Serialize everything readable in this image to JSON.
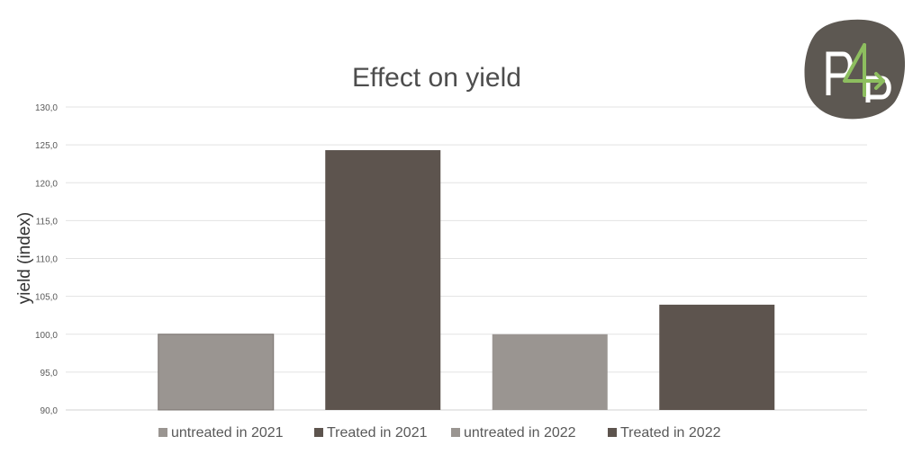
{
  "chart_data": {
    "type": "bar",
    "title": "Effect on yield",
    "xlabel": "",
    "ylabel": "yield (index)",
    "ylim": [
      90,
      130
    ],
    "ytick_step": 5,
    "ytick_labels": [
      "90,0",
      "95,0",
      "100,0",
      "105,0",
      "110,0",
      "115,0",
      "120,0",
      "125,0",
      "130,0"
    ],
    "grid": true,
    "legend_position": "bottom",
    "series": [
      {
        "name": "untreated in 2021",
        "value": 100.0,
        "color": "#9a9591"
      },
      {
        "name": "Treated in 2021",
        "value": 124.3,
        "color": "#5d544e"
      },
      {
        "name": "untreated in 2022",
        "value": 100.0,
        "color": "#9a9591"
      },
      {
        "name": "Treated in 2022",
        "value": 103.9,
        "color": "#5d544e"
      }
    ]
  },
  "logo": {
    "color": "#5d5852",
    "accent": "#8dbe5f"
  }
}
